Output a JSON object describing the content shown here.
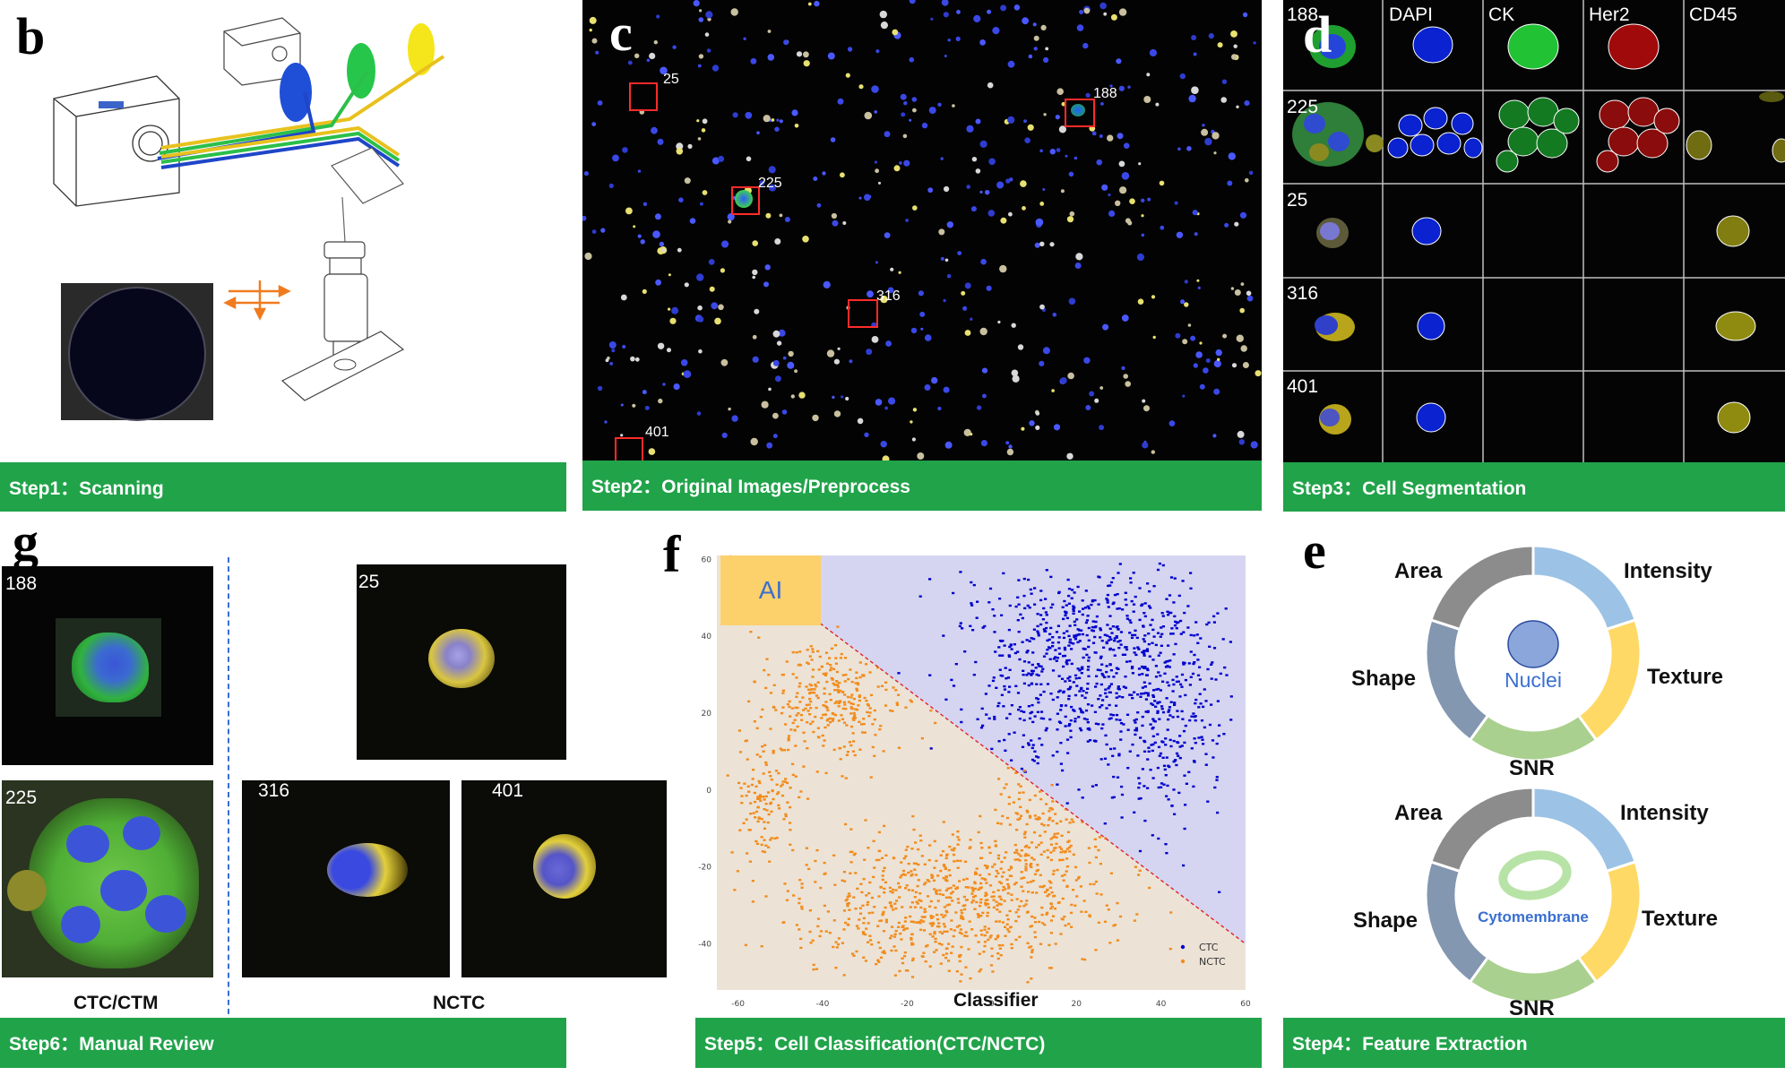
{
  "panels": {
    "b": {
      "letter": "b",
      "step": "Step1：Scanning"
    },
    "c": {
      "letter": "c",
      "step": "Step2：Original Images/Preprocess",
      "cell_labels": [
        "25",
        "188",
        "225",
        "316",
        "401"
      ]
    },
    "d": {
      "letter": "d",
      "step": "Step3：Cell Segmentation",
      "columns": [
        "DAPI",
        "CK",
        "Her2",
        "CD45"
      ],
      "rows": [
        "188",
        "225",
        "25",
        "316",
        "401"
      ]
    },
    "e": {
      "letter": "e",
      "step": "Step4：Feature Extraction",
      "rings": [
        {
          "center": "Nuclei",
          "labels": {
            "area": "Area",
            "intensity": "Intensity",
            "shape": "Shape",
            "texture": "Texture",
            "snr": "SNR"
          }
        },
        {
          "center": "Cytomembrane",
          "labels": {
            "area": "Area",
            "intensity": "Intensity",
            "shape": "Shape",
            "texture": "Texture",
            "snr": "SNR"
          }
        }
      ],
      "segment_colors": {
        "area": "#8c8c8c",
        "intensity": "#9cc3e6",
        "texture": "#ffd966",
        "snr": "#a9d08e",
        "shape": "#8497b0"
      }
    },
    "f": {
      "letter": "f",
      "step": "Step5：Cell Classification(CTC/NCTC)",
      "ai_badge": "AI"
    },
    "g": {
      "letter": "g",
      "step": "Step6：Manual Review",
      "ctc_caption": "CTC/CTM",
      "nctc_caption": "NCTC",
      "cells": [
        "188",
        "225",
        "25",
        "316",
        "401"
      ]
    }
  },
  "chart_data": {
    "type": "scatter",
    "xlabel": "Classifier",
    "ylabel": "",
    "xlim": [
      -65,
      60
    ],
    "ylim": [
      -52,
      61
    ],
    "xticks": [
      -60,
      -40,
      -20,
      0,
      20,
      40,
      60
    ],
    "yticks": [
      -40,
      -20,
      0,
      20,
      40,
      60
    ],
    "ytick_labels": [
      "-40",
      "-20",
      "0",
      "20",
      "40",
      "60"
    ],
    "xtick_labels": [
      "-60",
      "-40",
      "-20",
      "0",
      "20",
      "40",
      "60"
    ],
    "decision_boundary": {
      "from": [
        -45,
        47
      ],
      "to": [
        60,
        -40
      ]
    },
    "legend": {
      "placement": "bottom-right",
      "entries": [
        "CTC",
        "NCTC"
      ]
    },
    "series": [
      {
        "name": "CTC",
        "color": "#0000cc",
        "clusters": [
          {
            "cx": 22,
            "cy": 38,
            "sx": 14,
            "sy": 10,
            "n": 520
          },
          {
            "cx": 40,
            "cy": 20,
            "sx": 8,
            "sy": 14,
            "n": 320
          },
          {
            "cx": 10,
            "cy": 20,
            "sx": 10,
            "sy": 10,
            "n": 160
          }
        ]
      },
      {
        "name": "NCTC",
        "color": "#f28c1e",
        "clusters": [
          {
            "cx": -38,
            "cy": 24,
            "sx": 9,
            "sy": 8,
            "n": 330
          },
          {
            "cx": -54,
            "cy": -2,
            "sx": 4,
            "sy": 8,
            "n": 120
          },
          {
            "cx": -10,
            "cy": -30,
            "sx": 18,
            "sy": 9,
            "n": 760
          },
          {
            "cx": 12,
            "cy": -10,
            "sx": 6,
            "sy": 10,
            "n": 200
          }
        ]
      }
    ],
    "background_colors": {
      "upper": "#d5d5f2",
      "lower": "#ece3d6",
      "ai_badge": "#fcd06b"
    }
  }
}
